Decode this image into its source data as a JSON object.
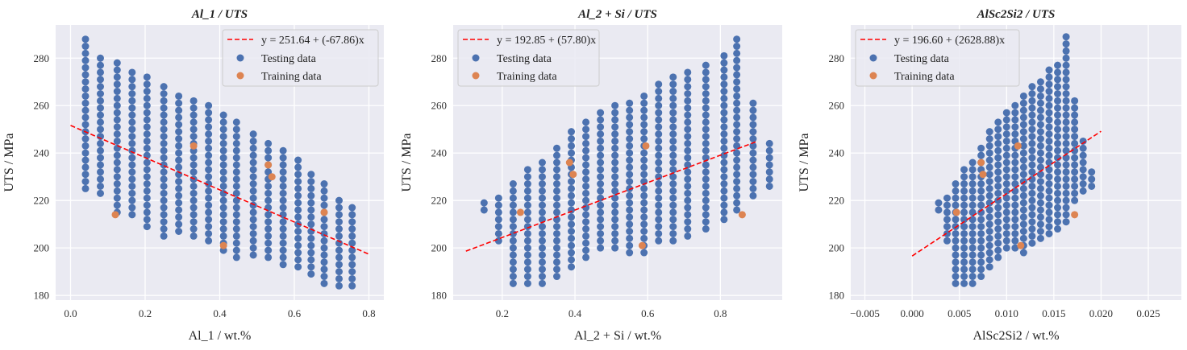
{
  "colors": {
    "axes_bg": "#eaeaf2",
    "grid": "#ffffff",
    "testing": "#4c72b0",
    "training": "#dd8452",
    "fit_line": "#ff0000"
  },
  "legend": {
    "testing_label": "Testing data",
    "training_label": "Training data"
  },
  "chart_data": [
    {
      "type": "scatter",
      "title": "Al_1 / UTS",
      "xlabel": "Al_1 / wt.%",
      "ylabel": "UTS / MPa",
      "xlim": [
        -0.04,
        0.84
      ],
      "ylim": [
        178,
        294
      ],
      "xticks": [
        0.0,
        0.2,
        0.4,
        0.6,
        0.8
      ],
      "xtick_labels": [
        "0.0",
        "0.2",
        "0.4",
        "0.6",
        "0.8"
      ],
      "yticks": [
        180,
        200,
        220,
        240,
        260,
        280
      ],
      "legend_position": "top-right",
      "grid": true,
      "fit": {
        "label": "y = 251.64 + (-67.86)x",
        "intercept": 251.64,
        "slope": -67.86,
        "x_range": [
          0.0,
          0.8
        ]
      },
      "training": {
        "name": "Training data",
        "points": [
          [
            0.12,
            214
          ],
          [
            0.33,
            243
          ],
          [
            0.41,
            201
          ],
          [
            0.53,
            235
          ],
          [
            0.54,
            230
          ],
          [
            0.68,
            215
          ]
        ]
      },
      "testing": {
        "name": "Testing data",
        "columns": [
          {
            "x": 0.04,
            "y_min": 225,
            "y_max": 289
          },
          {
            "x": 0.08,
            "y_min": 223,
            "y_max": 281
          },
          {
            "x": 0.125,
            "y_min": 215,
            "y_max": 279
          },
          {
            "x": 0.165,
            "y_min": 214,
            "y_max": 276
          },
          {
            "x": 0.205,
            "y_min": 209,
            "y_max": 272
          },
          {
            "x": 0.25,
            "y_min": 205,
            "y_max": 269
          },
          {
            "x": 0.29,
            "y_min": 207,
            "y_max": 266
          },
          {
            "x": 0.33,
            "y_min": 205,
            "y_max": 263
          },
          {
            "x": 0.37,
            "y_min": 203,
            "y_max": 261
          },
          {
            "x": 0.41,
            "y_min": 199,
            "y_max": 258
          },
          {
            "x": 0.445,
            "y_min": 196,
            "y_max": 255
          },
          {
            "x": 0.49,
            "y_min": 197,
            "y_max": 250
          },
          {
            "x": 0.53,
            "y_min": 196,
            "y_max": 245
          },
          {
            "x": 0.57,
            "y_min": 193,
            "y_max": 241
          },
          {
            "x": 0.61,
            "y_min": 192,
            "y_max": 238
          },
          {
            "x": 0.645,
            "y_min": 189,
            "y_max": 231
          },
          {
            "x": 0.68,
            "y_min": 185,
            "y_max": 227
          },
          {
            "x": 0.72,
            "y_min": 184,
            "y_max": 221
          },
          {
            "x": 0.755,
            "y_min": 184,
            "y_max": 219
          }
        ]
      }
    },
    {
      "type": "scatter",
      "title": "Al_2 + Si / UTS",
      "xlabel": "Al_2 + Si / wt.%",
      "ylabel": "UTS / MPa",
      "xlim": [
        0.065,
        0.97
      ],
      "ylim": [
        178,
        294
      ],
      "xticks": [
        0.2,
        0.4,
        0.6,
        0.8
      ],
      "xtick_labels": [
        "0.2",
        "0.4",
        "0.6",
        "0.8"
      ],
      "yticks": [
        180,
        200,
        220,
        240,
        260,
        280
      ],
      "legend_position": "top-left",
      "grid": true,
      "fit": {
        "label": "y = 192.85 + (57.80)x",
        "intercept": 192.85,
        "slope": 57.8,
        "x_range": [
          0.1,
          0.9
        ]
      },
      "training": {
        "name": "Training data",
        "points": [
          [
            0.25,
            215
          ],
          [
            0.385,
            236
          ],
          [
            0.395,
            231
          ],
          [
            0.585,
            201
          ],
          [
            0.595,
            243
          ],
          [
            0.86,
            214
          ]
        ]
      },
      "testing": {
        "name": "Testing data",
        "columns": [
          {
            "x": 0.15,
            "y_min": 216,
            "y_max": 219
          },
          {
            "x": 0.19,
            "y_min": 203,
            "y_max": 221
          },
          {
            "x": 0.23,
            "y_min": 185,
            "y_max": 227
          },
          {
            "x": 0.27,
            "y_min": 185,
            "y_max": 233
          },
          {
            "x": 0.31,
            "y_min": 185,
            "y_max": 238
          },
          {
            "x": 0.35,
            "y_min": 188,
            "y_max": 244
          },
          {
            "x": 0.39,
            "y_min": 192,
            "y_max": 250
          },
          {
            "x": 0.43,
            "y_min": 196,
            "y_max": 253
          },
          {
            "x": 0.47,
            "y_min": 200,
            "y_max": 258
          },
          {
            "x": 0.51,
            "y_min": 200,
            "y_max": 261
          },
          {
            "x": 0.55,
            "y_min": 198,
            "y_max": 263
          },
          {
            "x": 0.59,
            "y_min": 198,
            "y_max": 266
          },
          {
            "x": 0.63,
            "y_min": 203,
            "y_max": 269
          },
          {
            "x": 0.67,
            "y_min": 203,
            "y_max": 272
          },
          {
            "x": 0.71,
            "y_min": 205,
            "y_max": 275
          },
          {
            "x": 0.76,
            "y_min": 208,
            "y_max": 279
          },
          {
            "x": 0.81,
            "y_min": 212,
            "y_max": 281
          },
          {
            "x": 0.845,
            "y_min": 216,
            "y_max": 289
          },
          {
            "x": 0.89,
            "y_min": 222,
            "y_max": 263
          },
          {
            "x": 0.935,
            "y_min": 226,
            "y_max": 244
          }
        ]
      }
    },
    {
      "type": "scatter",
      "title": "AlSc2Si2 / UTS",
      "xlabel": "AlSc2Si2 / wt.%",
      "ylabel": "UTS / MPa",
      "xlim": [
        -0.0065,
        0.0285
      ],
      "ylim": [
        178,
        294
      ],
      "xticks": [
        -0.005,
        0.0,
        0.005,
        0.01,
        0.015,
        0.02,
        0.025
      ],
      "xtick_labels": [
        "−0.005",
        "0.000",
        "0.005",
        "0.010",
        "0.015",
        "0.020",
        "0.025"
      ],
      "yticks": [
        180,
        200,
        220,
        240,
        260,
        280
      ],
      "legend_position": "top-left",
      "grid": true,
      "fit": {
        "label": "y = 196.60 + (2628.88)x",
        "intercept": 196.6,
        "slope": 2628.88,
        "x_range": [
          0.0,
          0.02
        ]
      },
      "training": {
        "name": "Training data",
        "points": [
          [
            0.0047,
            215
          ],
          [
            0.0073,
            236
          ],
          [
            0.0075,
            231
          ],
          [
            0.0112,
            243
          ],
          [
            0.0115,
            201
          ],
          [
            0.0172,
            214
          ]
        ]
      },
      "testing": {
        "name": "Testing data",
        "columns": [
          {
            "x": 0.0028,
            "y_min": 216,
            "y_max": 219
          },
          {
            "x": 0.0037,
            "y_min": 203,
            "y_max": 221
          },
          {
            "x": 0.0046,
            "y_min": 185,
            "y_max": 227
          },
          {
            "x": 0.0055,
            "y_min": 185,
            "y_max": 233
          },
          {
            "x": 0.0064,
            "y_min": 185,
            "y_max": 238
          },
          {
            "x": 0.0073,
            "y_min": 188,
            "y_max": 244
          },
          {
            "x": 0.0082,
            "y_min": 192,
            "y_max": 250
          },
          {
            "x": 0.0091,
            "y_min": 196,
            "y_max": 253
          },
          {
            "x": 0.01,
            "y_min": 200,
            "y_max": 258
          },
          {
            "x": 0.0109,
            "y_min": 200,
            "y_max": 261
          },
          {
            "x": 0.0118,
            "y_min": 198,
            "y_max": 265
          },
          {
            "x": 0.0127,
            "y_min": 202,
            "y_max": 268
          },
          {
            "x": 0.0136,
            "y_min": 204,
            "y_max": 272
          },
          {
            "x": 0.0145,
            "y_min": 206,
            "y_max": 275
          },
          {
            "x": 0.0154,
            "y_min": 208,
            "y_max": 279
          },
          {
            "x": 0.0163,
            "y_min": 211,
            "y_max": 289
          },
          {
            "x": 0.0172,
            "y_min": 220,
            "y_max": 262
          },
          {
            "x": 0.0181,
            "y_min": 224,
            "y_max": 246
          },
          {
            "x": 0.019,
            "y_min": 226,
            "y_max": 234
          }
        ]
      }
    }
  ]
}
